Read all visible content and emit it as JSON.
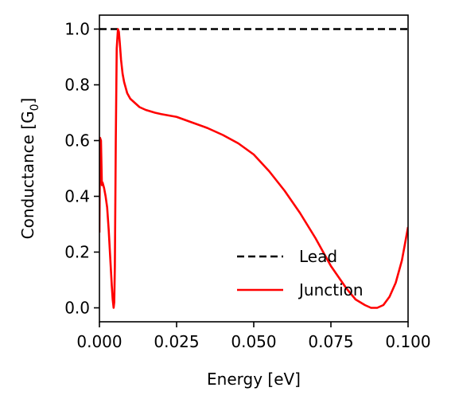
{
  "chart_data": {
    "type": "line",
    "title": "",
    "xlabel": "Energy [eV]",
    "ylabel_main": "Conductance [G",
    "ylabel_sub": "0",
    "ylabel_close": "]",
    "xlim": [
      0.0,
      0.1
    ],
    "ylim": [
      -0.05,
      1.05
    ],
    "xticks": [
      0.0,
      0.025,
      0.05,
      0.075,
      0.1
    ],
    "xtick_labels": [
      "0.000",
      "0.025",
      "0.050",
      "0.075",
      "0.100"
    ],
    "yticks": [
      0.0,
      0.2,
      0.4,
      0.6,
      0.8,
      1.0
    ],
    "ytick_labels": [
      "0.0",
      "0.2",
      "0.4",
      "0.6",
      "0.8",
      "1.0"
    ],
    "grid": false,
    "legend": "lower-right",
    "series": [
      {
        "name": "Lead",
        "color": "#000000",
        "style": "dashed",
        "x": [
          0.0,
          0.1
        ],
        "y": [
          1.0,
          1.0
        ]
      },
      {
        "name": "Junction",
        "color": "#ff0000",
        "style": "solid",
        "x": [
          0.0,
          0.0002,
          0.0005,
          0.0008,
          0.001,
          0.0015,
          0.002,
          0.0025,
          0.003,
          0.0035,
          0.004,
          0.0043,
          0.0046,
          0.0048,
          0.005,
          0.0053,
          0.0056,
          0.006,
          0.0063,
          0.0066,
          0.007,
          0.0075,
          0.008,
          0.009,
          0.01,
          0.011,
          0.012,
          0.013,
          0.015,
          0.018,
          0.02,
          0.025,
          0.03,
          0.035,
          0.04,
          0.045,
          0.05,
          0.055,
          0.06,
          0.065,
          0.07,
          0.075,
          0.08,
          0.083,
          0.086,
          0.088,
          0.09,
          0.092,
          0.094,
          0.096,
          0.098,
          0.1
        ],
        "y": [
          0.27,
          0.61,
          0.6,
          0.44,
          0.45,
          0.43,
          0.4,
          0.36,
          0.28,
          0.18,
          0.08,
          0.03,
          0.0,
          0.02,
          0.15,
          0.6,
          0.93,
          1.0,
          0.99,
          0.95,
          0.89,
          0.84,
          0.81,
          0.77,
          0.75,
          0.74,
          0.73,
          0.72,
          0.71,
          0.7,
          0.695,
          0.685,
          0.665,
          0.645,
          0.62,
          0.59,
          0.55,
          0.49,
          0.42,
          0.34,
          0.25,
          0.15,
          0.07,
          0.03,
          0.01,
          0.0,
          0.0,
          0.01,
          0.04,
          0.09,
          0.17,
          0.29
        ]
      }
    ]
  }
}
